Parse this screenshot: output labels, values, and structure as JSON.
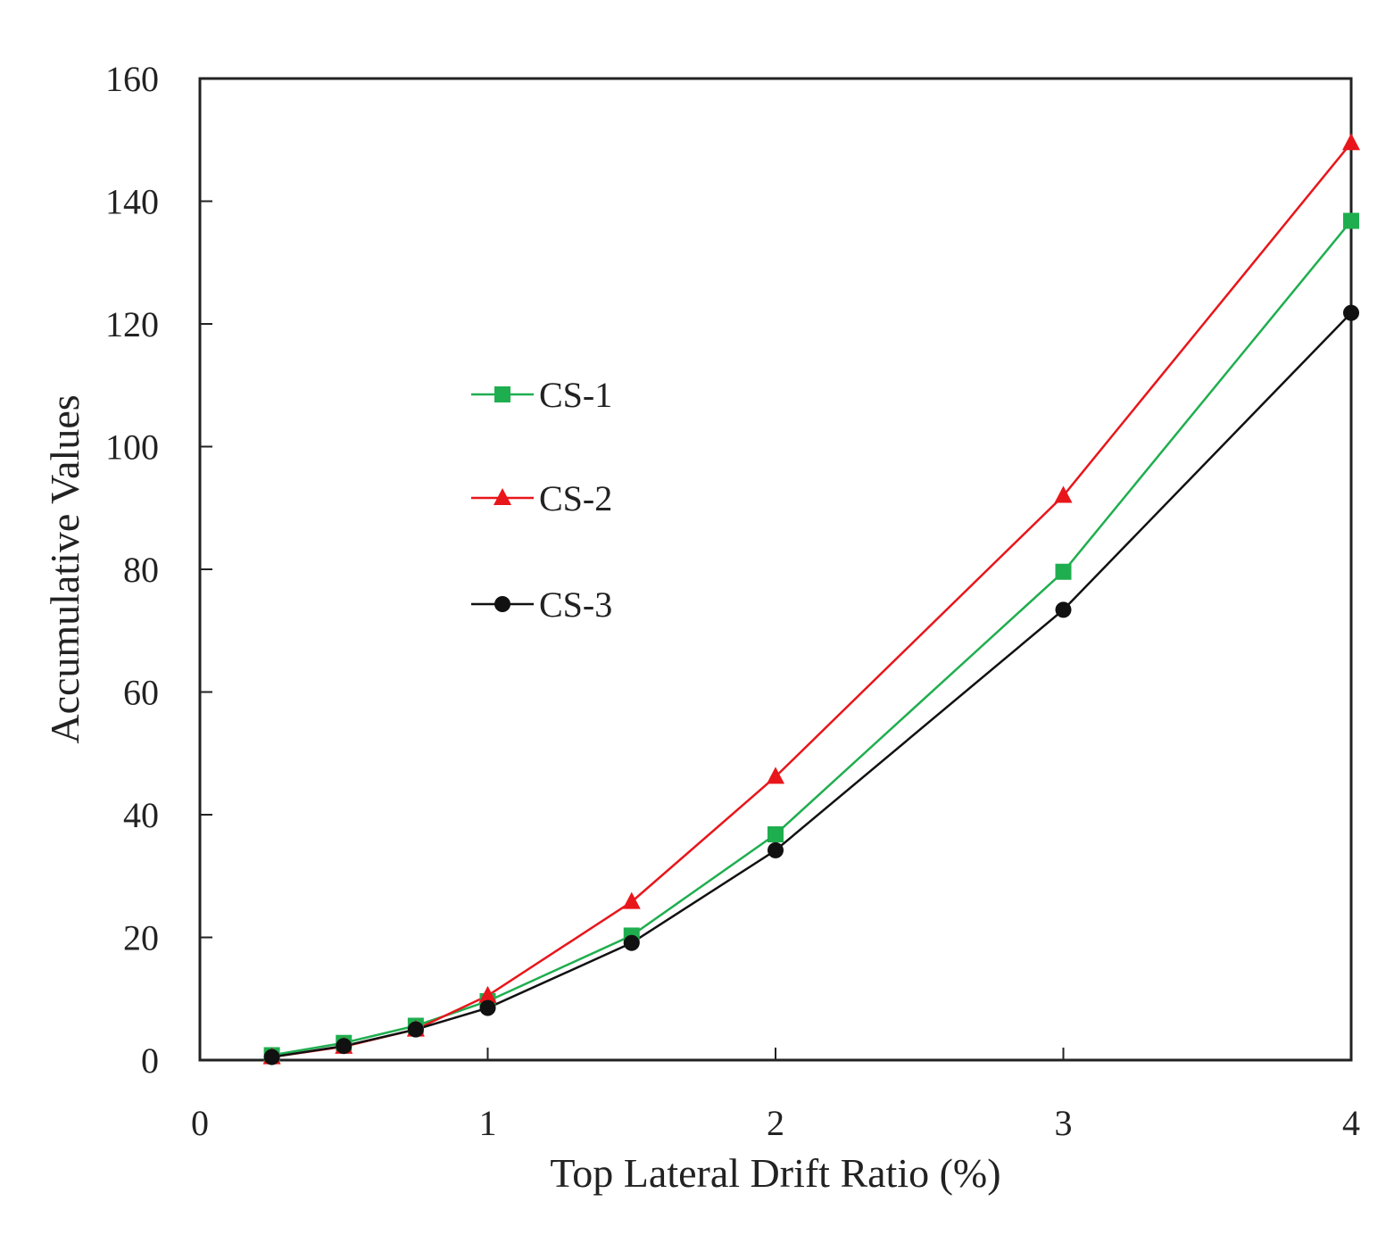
{
  "chart_data": {
    "type": "line",
    "title": "",
    "xlabel": "Top Lateral Drift Ratio (%)",
    "ylabel": "Accumulative Values",
    "xlim": [
      0,
      4
    ],
    "ylim": [
      0,
      160
    ],
    "xticks": [
      0,
      1,
      2,
      3,
      4
    ],
    "yticks": [
      0,
      20,
      40,
      60,
      80,
      100,
      120,
      140,
      160
    ],
    "grid": false,
    "legend_position": "center-left",
    "x": [
      0.25,
      0.5,
      0.75,
      1,
      1.5,
      2,
      3,
      4
    ],
    "series": [
      {
        "name": "CS-1",
        "marker": "square",
        "color": "#1fae4f",
        "values": [
          0.8,
          2.8,
          5.6,
          9.6,
          20.3,
          36.8,
          79.6,
          136.8
        ]
      },
      {
        "name": "CS-2",
        "marker": "triangle",
        "color": "#e8161b",
        "values": [
          0.5,
          2.2,
          5.0,
          10.5,
          25.8,
          46.2,
          92.0,
          149.5
        ]
      },
      {
        "name": "CS-3",
        "marker": "circle",
        "color": "#111111",
        "values": [
          0.5,
          2.3,
          5.0,
          8.5,
          19.1,
          34.2,
          73.4,
          121.8
        ]
      }
    ]
  }
}
